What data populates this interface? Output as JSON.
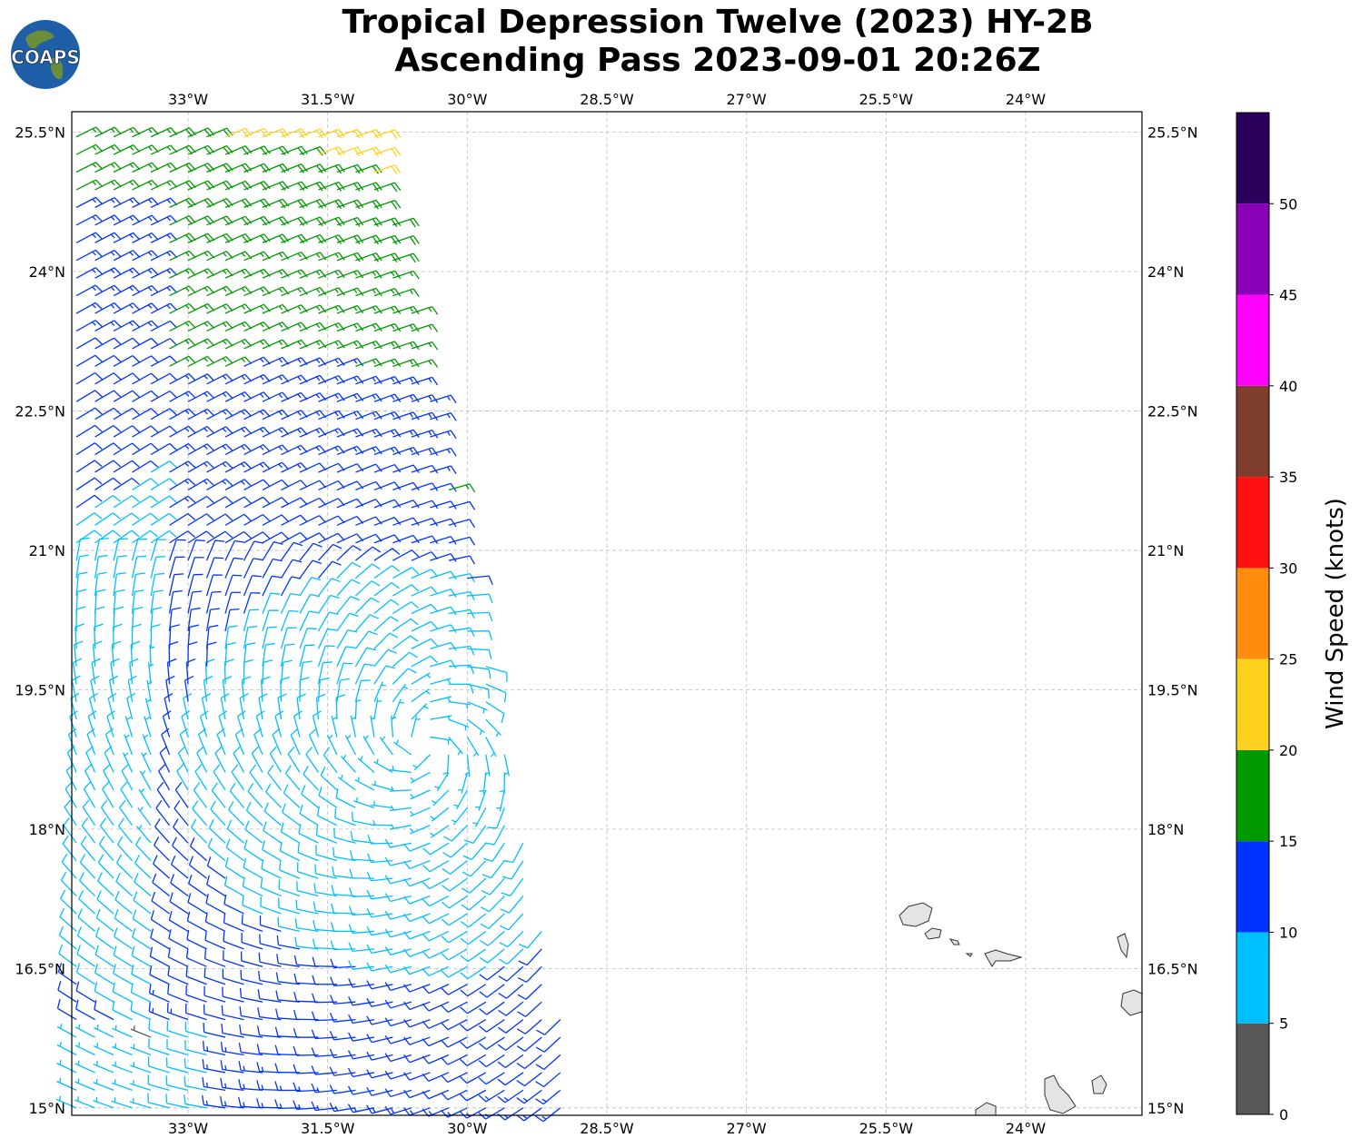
{
  "title": {
    "line1": "Tropical Depression Twelve (2023) HY-2B",
    "line2": "Ascending Pass 2023-09-01 20:26Z"
  },
  "logo": {
    "text": "COAPS",
    "icon": "globe-icon"
  },
  "chart_data": {
    "type": "wind-barb-map",
    "xlim": [
      -34.25,
      -22.75
    ],
    "ylim": [
      14.92,
      25.72
    ],
    "x_ticks": [
      {
        "value": -33,
        "label": "33°W"
      },
      {
        "value": -31.5,
        "label": "31.5°W"
      },
      {
        "value": -30,
        "label": "30°W"
      },
      {
        "value": -28.5,
        "label": "28.5°W"
      },
      {
        "value": -27,
        "label": "27°W"
      },
      {
        "value": -25.5,
        "label": "25.5°W"
      },
      {
        "value": -24,
        "label": "24°W"
      }
    ],
    "y_ticks": [
      {
        "value": 25.5,
        "label": "25.5°N"
      },
      {
        "value": 24,
        "label": "24°N"
      },
      {
        "value": 22.5,
        "label": "22.5°N"
      },
      {
        "value": 21,
        "label": "21°N"
      },
      {
        "value": 19.5,
        "label": "19.5°N"
      },
      {
        "value": 18,
        "label": "18°N"
      },
      {
        "value": 16.5,
        "label": "16.5°N"
      },
      {
        "value": 15,
        "label": "15°N"
      }
    ],
    "grid": true,
    "wind_field": {
      "center": {
        "lon": -30.45,
        "lat": 18.9
      },
      "swath_west_edge_lon": -34.2,
      "swath_east_edge": [
        {
          "lat": 15.0,
          "lon": -28.8
        },
        {
          "lat": 25.6,
          "lon": -31.0
        }
      ],
      "sample_barbs": [
        {
          "lon": -32.5,
          "lat": 25.4,
          "speed_kt": 16
        },
        {
          "lon": -31.0,
          "lat": 23.5,
          "speed_kt": 17
        },
        {
          "lon": -30.1,
          "lat": 22.0,
          "speed_kt": 21
        },
        {
          "lon": -33.8,
          "lat": 21.5,
          "speed_kt": 12
        },
        {
          "lon": -30.5,
          "lat": 18.8,
          "speed_kt": 8
        },
        {
          "lon": -31.9,
          "lat": 17.2,
          "speed_kt": 8
        },
        {
          "lon": -29.5,
          "lat": 16.0,
          "speed_kt": 13
        },
        {
          "lon": -33.2,
          "lat": 15.5,
          "speed_kt": 4
        }
      ]
    },
    "islands": [
      "Cabo Verde"
    ],
    "colorbar": {
      "label": "Wind Speed (knots)",
      "ticks": [
        "0",
        "5",
        "10",
        "15",
        "20",
        "25",
        "30",
        "35",
        "40",
        "45",
        "50"
      ],
      "bins": [
        {
          "from": 0,
          "to": 5,
          "color": "#585858"
        },
        {
          "from": 5,
          "to": 10,
          "color": "#00bfff"
        },
        {
          "from": 10,
          "to": 15,
          "color": "#0033ff"
        },
        {
          "from": 15,
          "to": 20,
          "color": "#009900"
        },
        {
          "from": 20,
          "to": 25,
          "color": "#ffd21f"
        },
        {
          "from": 25,
          "to": 30,
          "color": "#ff8c0f"
        },
        {
          "from": 30,
          "to": 35,
          "color": "#ff0f0f"
        },
        {
          "from": 35,
          "to": 40,
          "color": "#7f3d2b"
        },
        {
          "from": 40,
          "to": 45,
          "color": "#ff00ff"
        },
        {
          "from": 45,
          "to": 50,
          "color": "#8800b8"
        },
        {
          "from": 50,
          "to": 55,
          "color": "#2b005c"
        }
      ]
    }
  }
}
